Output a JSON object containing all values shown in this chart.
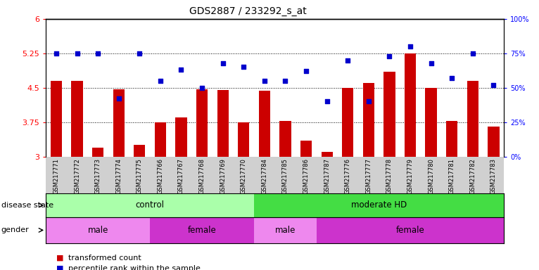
{
  "title": "GDS2887 / 233292_s_at",
  "samples": [
    "GSM217771",
    "GSM217772",
    "GSM217773",
    "GSM217774",
    "GSM217775",
    "GSM217766",
    "GSM217767",
    "GSM217768",
    "GSM217769",
    "GSM217770",
    "GSM217784",
    "GSM217785",
    "GSM217786",
    "GSM217787",
    "GSM217776",
    "GSM217777",
    "GSM217778",
    "GSM217779",
    "GSM217780",
    "GSM217781",
    "GSM217782",
    "GSM217783"
  ],
  "bar_values": [
    4.65,
    4.65,
    3.2,
    4.47,
    3.25,
    3.75,
    3.85,
    4.47,
    4.45,
    3.75,
    4.44,
    3.78,
    3.35,
    3.1,
    4.5,
    4.6,
    4.85,
    5.25,
    4.5,
    3.78,
    4.65,
    3.65
  ],
  "dot_values": [
    75,
    75,
    75,
    42,
    75,
    55,
    63,
    50,
    68,
    65,
    55,
    55,
    62,
    40,
    70,
    40,
    73,
    80,
    68,
    57,
    75,
    52
  ],
  "ylim_left": [
    3.0,
    6.0
  ],
  "ylim_right": [
    0,
    100
  ],
  "yticks_left": [
    3.0,
    3.75,
    4.5,
    5.25,
    6.0
  ],
  "yticks_right": [
    0,
    25,
    50,
    75,
    100
  ],
  "ytick_labels_left": [
    "3",
    "3.75",
    "4.5",
    "5.25",
    "6"
  ],
  "ytick_labels_right": [
    "0%",
    "25%",
    "50%",
    "75%",
    "100%"
  ],
  "hlines": [
    3.75,
    4.5,
    5.25
  ],
  "bar_color": "#cc0000",
  "dot_color": "#0000cc",
  "disease_state_groups": [
    {
      "label": "control",
      "start": 0,
      "end": 10,
      "color": "#aaffaa"
    },
    {
      "label": "moderate HD",
      "start": 10,
      "end": 22,
      "color": "#44dd44"
    }
  ],
  "gender_groups": [
    {
      "label": "male",
      "start": 0,
      "end": 5,
      "color": "#ee88ee"
    },
    {
      "label": "female",
      "start": 5,
      "end": 10,
      "color": "#cc33cc"
    },
    {
      "label": "male",
      "start": 10,
      "end": 13,
      "color": "#ee88ee"
    },
    {
      "label": "female",
      "start": 13,
      "end": 22,
      "color": "#cc33cc"
    }
  ],
  "legend_items": [
    {
      "label": "transformed count",
      "color": "#cc0000"
    },
    {
      "label": "percentile rank within the sample",
      "color": "#0000cc"
    }
  ]
}
